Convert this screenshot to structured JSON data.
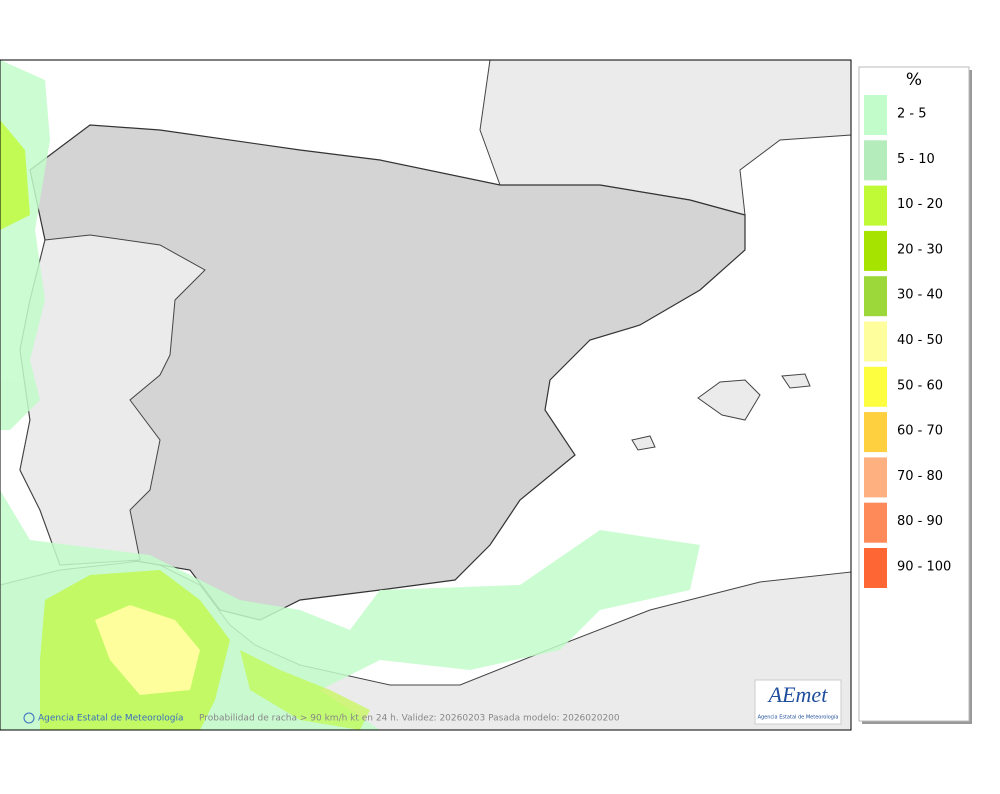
{
  "legend": {
    "title": "%",
    "items": [
      {
        "label": "2 - 5",
        "color": "#c2fcca"
      },
      {
        "label": "5 - 10",
        "color": "#b4ecbc"
      },
      {
        "label": "10 - 20",
        "color": "#c0fa36"
      },
      {
        "label": "20 - 30",
        "color": "#a6e400"
      },
      {
        "label": "30 - 40",
        "color": "#9cd83a"
      },
      {
        "label": "40 - 50",
        "color": "#fefe9c"
      },
      {
        "label": "50 - 60",
        "color": "#fefe40"
      },
      {
        "label": "60 - 70",
        "color": "#fed040"
      },
      {
        "label": "70 - 80",
        "color": "#feb080"
      },
      {
        "label": "80 - 90",
        "color": "#fe8a5a"
      },
      {
        "label": "90 - 100",
        "color": "#fe6634"
      }
    ]
  },
  "footer": {
    "credit": "Agencia Estatal de Meteorología",
    "caption": "Probabilidad de racha > 90 km/h kt en 24 h. Validez: 20260203 Pasada modelo: 2026020200"
  },
  "logo": {
    "text": "AEmet",
    "subtitle": "Agencia Estatal de Meteorología"
  }
}
